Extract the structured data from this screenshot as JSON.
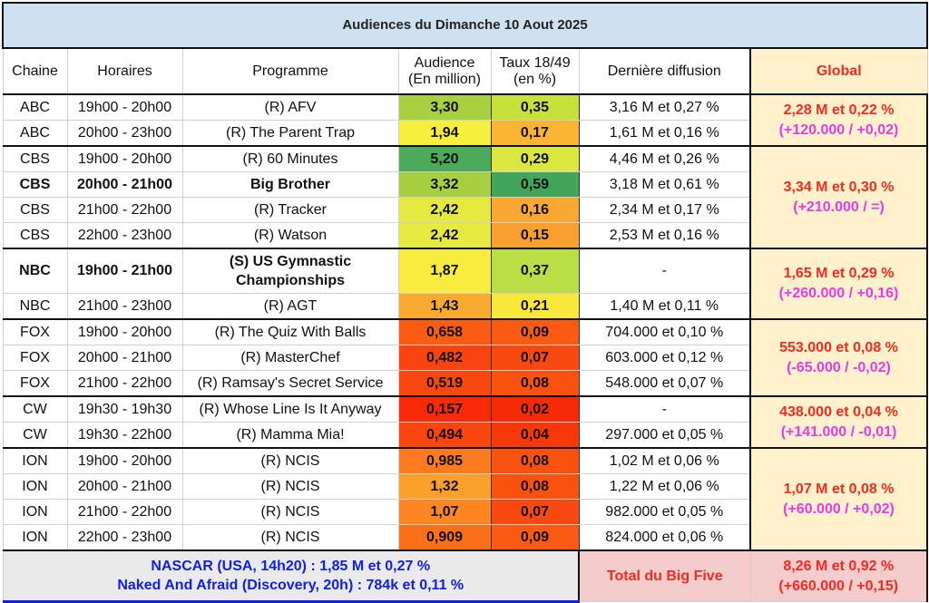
{
  "title": "Audiences du Dimanche 10 Aout 2025",
  "headers": {
    "chaine": "Chaine",
    "horaires": "Horaires",
    "programme": "Programme",
    "audience": "Audience",
    "audience_unit": "(En million)",
    "taux": "Taux 18/49",
    "taux_unit": "(en %)",
    "derniere": "Dernière diffusion",
    "global": "Global"
  },
  "groups": [
    {
      "global": "2,28 M et 0,22 %",
      "delta": "(+120.000 / +0,02)",
      "rows": [
        {
          "chaine": "ABC",
          "horaires": "19h00 - 20h00",
          "programme": "(R) AFV",
          "audience": "3,30",
          "audience_color": "#a8d040",
          "taux": "0,35",
          "taux_color": "#c6e03c",
          "derniere": "3,16 M et 0,27 %"
        },
        {
          "chaine": "ABC",
          "horaires": "20h00 - 23h00",
          "programme": "(R) The Parent Trap",
          "audience": "1,94",
          "audience_color": "#f7ef3e",
          "taux": "0,17",
          "taux_color": "#f9b432",
          "derniere": "1,61 M et 0,16 %"
        }
      ]
    },
    {
      "global": "3,34 M et 0,30 %",
      "delta": "(+210.000 / =)",
      "rows": [
        {
          "chaine": "CBS",
          "horaires": "19h00 - 20h00",
          "programme": "(R) 60 Minutes",
          "audience": "5,20",
          "audience_color": "#4daa5a",
          "taux": "0,29",
          "taux_color": "#dce840",
          "derniere": "4,46 M et 0,26 %"
        },
        {
          "chaine": "CBS",
          "horaires": "20h00 - 21h00",
          "programme": "Big Brother",
          "audience": "3,32",
          "audience_color": "#a7cf40",
          "taux": "0,59",
          "taux_color": "#43a55c",
          "derniere": "3,18 M et 0,61 %",
          "bold": true
        },
        {
          "chaine": "CBS",
          "horaires": "21h00 - 22h00",
          "programme": "(R) Tracker",
          "audience": "2,42",
          "audience_color": "#e6ea40",
          "taux": "0,16",
          "taux_color": "#f9a832",
          "derniere": "2,34 M et 0,17 %"
        },
        {
          "chaine": "CBS",
          "horaires": "22h00 - 23h00",
          "programme": "(R) Watson",
          "audience": "2,42",
          "audience_color": "#e6ea40",
          "taux": "0,15",
          "taux_color": "#f9a030",
          "derniere": "2,53 M et 0,16 %"
        }
      ]
    },
    {
      "global": "1,65 M et 0,29 %",
      "delta": "(+260.000 / +0,16)",
      "rows": [
        {
          "chaine": "NBC",
          "horaires": "19h00 - 21h00",
          "programme": "(S) US Gymnastic Championships",
          "audience": "1,87",
          "audience_color": "#f9ec3e",
          "taux": "0,37",
          "taux_color": "#bade46",
          "derniere": "-",
          "bold": true,
          "tall": true
        },
        {
          "chaine": "NBC",
          "horaires": "21h00 - 23h00",
          "programme": "(R) AGT",
          "audience": "1,43",
          "audience_color": "#f9aa30",
          "taux": "0,21",
          "taux_color": "#f9e83c",
          "derniere": "1,40 M et 0,11 %"
        }
      ]
    },
    {
      "global": "553.000 et 0,08 %",
      "delta": "(-65.000 / -0,02)",
      "rows": [
        {
          "chaine": "FOX",
          "horaires": "19h00 - 20h00",
          "programme": "(R) The Quiz With Balls",
          "audience": "0,658",
          "audience_color": "#fa5c14",
          "taux": "0,09",
          "taux_color": "#fa5a14",
          "derniere": "704.000 et 0,10 %"
        },
        {
          "chaine": "FOX",
          "horaires": "20h00 - 21h00",
          "programme": "(R) MasterChef",
          "audience": "0,482",
          "audience_color": "#f84410",
          "taux": "0,07",
          "taux_color": "#f84a10",
          "derniere": "603.000 et 0,12 %"
        },
        {
          "chaine": "FOX",
          "horaires": "21h00 - 22h00",
          "programme": "(R) Ramsay's Secret Service",
          "audience": "0,519",
          "audience_color": "#f9480f",
          "taux": "0,08",
          "taux_color": "#f9520f",
          "derniere": "548.000 et 0,07 %"
        }
      ]
    },
    {
      "global": "438.000 et 0,04 %",
      "delta": "(+141.000 / -0,01)",
      "rows": [
        {
          "chaine": "CW",
          "horaires": "19h30 - 19h30",
          "programme": "(R) Whose Line Is It Anyway",
          "audience": "0,157",
          "audience_color": "#f82a08",
          "taux": "0,02",
          "taux_color": "#f72a08",
          "derniere": "-"
        },
        {
          "chaine": "CW",
          "horaires": "19h30 - 22h00",
          "programme": "(R) Mamma Mia!",
          "audience": "0,494",
          "audience_color": "#f9460f",
          "taux": "0,04",
          "taux_color": "#f7380a",
          "derniere": "297.000 et 0,05 %"
        }
      ]
    },
    {
      "global": "1,07 M et 0,08 %",
      "delta": "(+60.000 / +0,02)",
      "rows": [
        {
          "chaine": "ION",
          "horaires": "19h00 - 20h00",
          "programme": "(R) NCIS",
          "audience": "0,985",
          "audience_color": "#fb7a1e",
          "taux": "0,08",
          "taux_color": "#f9520f",
          "derniere": "1,02 M et 0,06 %"
        },
        {
          "chaine": "ION",
          "horaires": "20h00 - 21h00",
          "programme": "(R) NCIS",
          "audience": "1,32",
          "audience_color": "#fba02a",
          "taux": "0,08",
          "taux_color": "#f9520f",
          "derniere": "1,22 M et 0,06 %"
        },
        {
          "chaine": "ION",
          "horaires": "21h00 - 22h00",
          "programme": "(R) NCIS",
          "audience": "1,07",
          "audience_color": "#fb8622",
          "taux": "0,07",
          "taux_color": "#f84a10",
          "derniere": "982.000 et 0,05 %"
        },
        {
          "chaine": "ION",
          "horaires": "22h00 - 23h00",
          "programme": "(R) NCIS",
          "audience": "0,909",
          "audience_color": "#fa7018",
          "taux": "0,09",
          "taux_color": "#fa5a14",
          "derniere": "824.000 et 0,06 %"
        }
      ]
    }
  ],
  "footer": {
    "notes": [
      "NASCAR (USA, 14h20) : 1,85 M et 0,27 %",
      "Naked And Afraid (Discovery, 20h) : 784k et 0,11 %"
    ],
    "total_label": "Total du Big Five",
    "total_value": "8,26 M et 0,92 %",
    "total_delta": "(+660.000 / +0,15)"
  }
}
